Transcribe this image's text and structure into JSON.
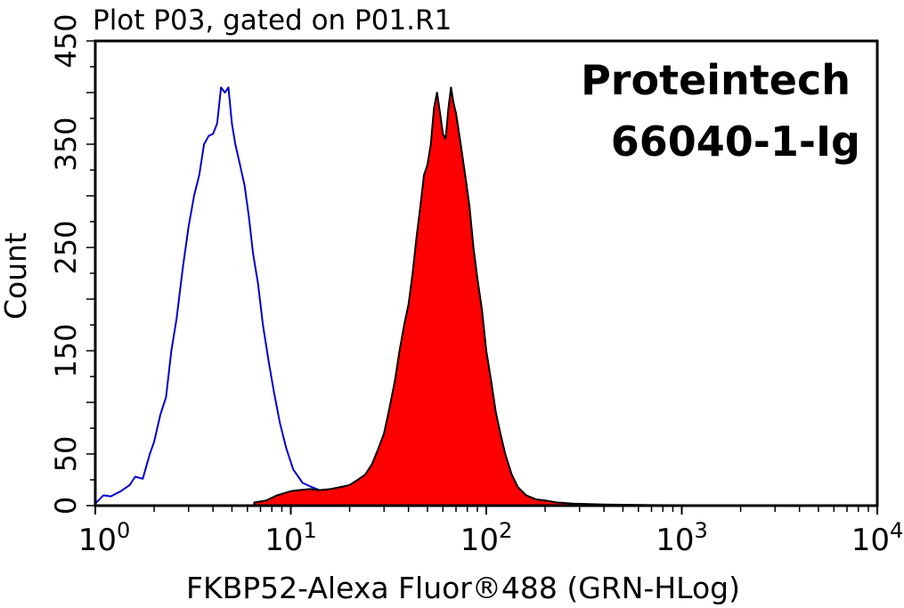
{
  "chart_data": {
    "type": "area",
    "title": "Plot P03, gated on P01.R1",
    "xlabel": "FKBP52-Alexa Fluor®488 (GRN-HLog)",
    "ylabel": "Count",
    "x_scale": "log",
    "xlim": [
      1,
      10000
    ],
    "ylim": [
      0,
      450
    ],
    "x_ticks": [
      {
        "value": 1,
        "base": "10",
        "exp": "0"
      },
      {
        "value": 10,
        "base": "10",
        "exp": "1"
      },
      {
        "value": 100,
        "base": "10",
        "exp": "2"
      },
      {
        "value": 1000,
        "base": "10",
        "exp": "3"
      },
      {
        "value": 10000,
        "base": "10",
        "exp": "4"
      }
    ],
    "y_ticks": [
      "0",
      "50",
      "150",
      "250",
      "350",
      "450"
    ],
    "y_tick_values": [
      0,
      50,
      150,
      250,
      350,
      450
    ],
    "annotations": [
      "Proteintech",
      "66040-1-Ig"
    ],
    "series": [
      {
        "role": "control",
        "style": "outline",
        "color": "#0000cc",
        "points": [
          [
            1.0,
            2
          ],
          [
            1.1,
            10
          ],
          [
            1.2,
            9
          ],
          [
            1.35,
            14
          ],
          [
            1.5,
            20
          ],
          [
            1.6,
            28
          ],
          [
            1.75,
            26
          ],
          [
            1.9,
            50
          ],
          [
            2.0,
            62
          ],
          [
            2.15,
            88
          ],
          [
            2.3,
            105
          ],
          [
            2.45,
            150
          ],
          [
            2.6,
            180
          ],
          [
            2.8,
            230
          ],
          [
            3.0,
            270
          ],
          [
            3.2,
            300
          ],
          [
            3.4,
            320
          ],
          [
            3.6,
            350
          ],
          [
            3.8,
            358
          ],
          [
            4.0,
            360
          ],
          [
            4.2,
            370
          ],
          [
            4.4,
            405
          ],
          [
            4.6,
            400
          ],
          [
            4.8,
            405
          ],
          [
            5.0,
            370
          ],
          [
            5.2,
            350
          ],
          [
            5.5,
            330
          ],
          [
            5.8,
            310
          ],
          [
            6.1,
            280
          ],
          [
            6.4,
            245
          ],
          [
            6.8,
            215
          ],
          [
            7.2,
            175
          ],
          [
            7.7,
            140
          ],
          [
            8.2,
            110
          ],
          [
            8.8,
            80
          ],
          [
            9.5,
            55
          ],
          [
            10.3,
            35
          ],
          [
            11.5,
            22
          ],
          [
            12.8,
            18
          ],
          [
            14.0,
            15
          ],
          [
            15.5,
            12
          ]
        ]
      },
      {
        "role": "sample",
        "style": "filled",
        "color": "#ff0000",
        "points": [
          [
            6.5,
            3
          ],
          [
            7.5,
            5
          ],
          [
            8.5,
            10
          ],
          [
            10,
            14
          ],
          [
            11,
            15
          ],
          [
            12.5,
            16
          ],
          [
            14,
            15
          ],
          [
            16,
            16
          ],
          [
            18,
            18
          ],
          [
            20,
            20
          ],
          [
            22,
            25
          ],
          [
            24,
            30
          ],
          [
            26,
            40
          ],
          [
            28,
            55
          ],
          [
            30,
            70
          ],
          [
            32,
            95
          ],
          [
            34,
            120
          ],
          [
            36,
            150
          ],
          [
            38,
            175
          ],
          [
            40,
            195
          ],
          [
            42,
            225
          ],
          [
            44,
            260
          ],
          [
            46,
            290
          ],
          [
            48,
            320
          ],
          [
            50,
            330
          ],
          [
            52,
            350
          ],
          [
            54,
            385
          ],
          [
            56,
            400
          ],
          [
            58,
            380
          ],
          [
            60,
            360
          ],
          [
            62,
            355
          ],
          [
            64,
            385
          ],
          [
            66,
            405
          ],
          [
            68,
            390
          ],
          [
            70,
            380
          ],
          [
            74,
            350
          ],
          [
            78,
            320
          ],
          [
            82,
            290
          ],
          [
            86,
            250
          ],
          [
            90,
            220
          ],
          [
            95,
            190
          ],
          [
            100,
            150
          ],
          [
            106,
            120
          ],
          [
            112,
            90
          ],
          [
            118,
            70
          ],
          [
            125,
            50
          ],
          [
            135,
            30
          ],
          [
            145,
            18
          ],
          [
            160,
            10
          ],
          [
            180,
            6
          ],
          [
            200,
            5
          ],
          [
            230,
            3
          ],
          [
            280,
            2
          ],
          [
            400,
            1
          ],
          [
            700,
            0.5
          ],
          [
            2000,
            0.3
          ],
          [
            9000,
            0.3
          ]
        ]
      }
    ],
    "grid": false,
    "legend": "none"
  }
}
